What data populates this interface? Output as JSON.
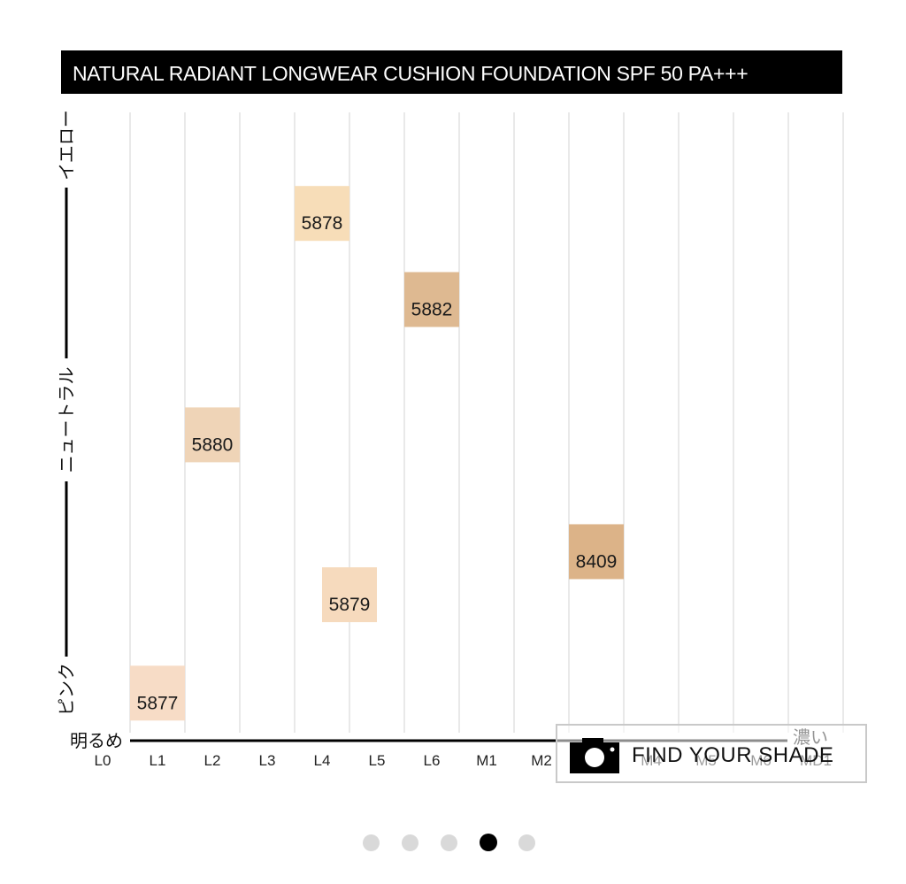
{
  "chart_data": {
    "type": "scatter",
    "title": "NATURAL RADIANT LONGWEAR CUSHION FOUNDATION SPF 50 PA+++",
    "x_categories": [
      "L0",
      "L1",
      "L2",
      "L3",
      "L4",
      "L5",
      "L6",
      "M1",
      "M2",
      "M3",
      "M4",
      "M5",
      "M6",
      "MD1"
    ],
    "x_axis_start_label": "明るめ",
    "x_axis_end_label": "濃い",
    "y_axis_labels": [
      "ピンク",
      "ニュートラル",
      "イエロー"
    ],
    "y_axis_note": "undertone scale from pink (bottom) to yellow (top), values 0–1",
    "grid": true,
    "points": [
      {
        "label": "5877",
        "x": 1.0,
        "y": 0.06,
        "color": "#f7dcc6"
      },
      {
        "label": "5880",
        "x": 2.0,
        "y": 0.48,
        "color": "#efd4b7"
      },
      {
        "label": "5878",
        "x": 4.0,
        "y": 0.84,
        "color": "#f7ddb8"
      },
      {
        "label": "5879",
        "x": 4.5,
        "y": 0.22,
        "color": "#f6dabd"
      },
      {
        "label": "5882",
        "x": 6.0,
        "y": 0.7,
        "color": "#deb991"
      },
      {
        "label": "8409",
        "x": 9.0,
        "y": 0.29,
        "color": "#dcb388"
      }
    ]
  },
  "find_shade": {
    "label": "FIND YOUR SHADE",
    "icon": "camera-icon"
  },
  "pagination": {
    "count": 5,
    "active_index": 3
  }
}
